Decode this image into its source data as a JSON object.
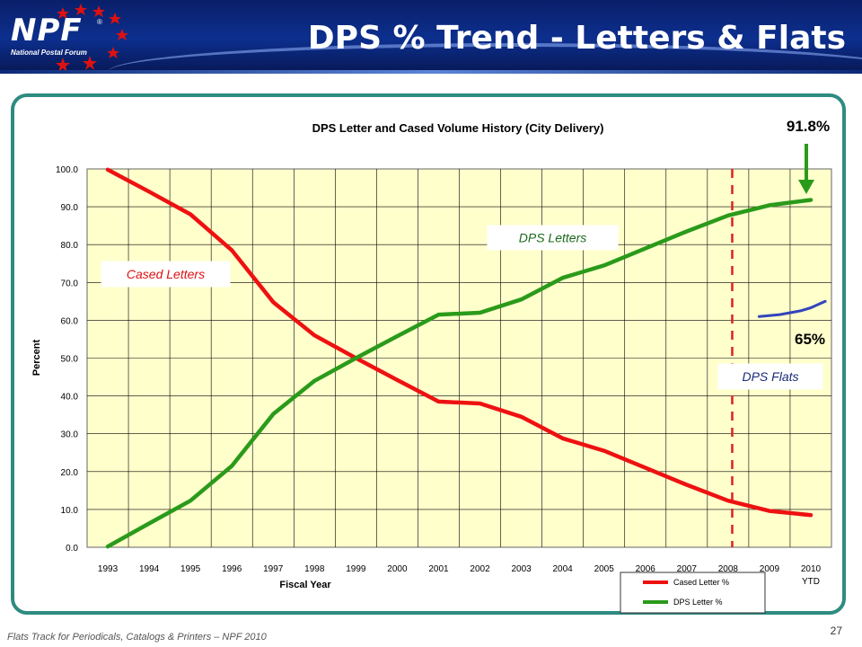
{
  "slide": {
    "title": "DPS % Trend - Letters & Flats",
    "logo": "NPF",
    "logo_subtitle": "National Postal Forum",
    "registered": "®",
    "footer": "Flats Track for Periodicals, Catalogs & Printers – NPF 2010",
    "page_number": "27",
    "colors": {
      "banner": "#0c2f8e",
      "frame": "#2e8b80",
      "plot_bg": "#ffffcc"
    }
  },
  "chart_data": {
    "type": "line",
    "title": "DPS Letter and Cased Volume History (City Delivery)",
    "xlabel": "Fiscal Year",
    "ylabel": "Percent",
    "categories": [
      "1993",
      "1994",
      "1995",
      "1996",
      "1997",
      "1998",
      "1999",
      "2000",
      "2001",
      "2002",
      "2003",
      "2004",
      "2005",
      "2006",
      "2007",
      "2008",
      "2009",
      "2010"
    ],
    "extra_tick_label": "YTD",
    "ylim": [
      0,
      100
    ],
    "yticks": [
      "0.0",
      "10.0",
      "20.0",
      "30.0",
      "40.0",
      "50.0",
      "60.0",
      "70.0",
      "80.0",
      "90.0",
      "100.0"
    ],
    "grid": true,
    "series": [
      {
        "name": "Cased Letter %",
        "color": "#ee1111",
        "values": [
          99.8,
          94,
          88,
          78.5,
          64.8,
          56,
          50,
          44.2,
          38.5,
          38,
          34.5,
          28.8,
          25.5,
          21,
          16.5,
          12.3,
          9.6,
          8.5
        ]
      },
      {
        "name": "DPS Letter %",
        "color": "#2a9a1a",
        "values": [
          0.2,
          6.3,
          12.3,
          21.5,
          35.2,
          44,
          50,
          55.8,
          61.5,
          62,
          65.5,
          71.2,
          74.5,
          79,
          83.5,
          87.7,
          90.4,
          91.8
        ]
      },
      {
        "color": "#3344bb",
        "x": [
          15.75,
          16.25,
          16.75,
          17.0,
          17.35
        ],
        "values": [
          61,
          61.5,
          62.5,
          63.3,
          65
        ]
      }
    ],
    "legend_position": "bottom-right",
    "annotations": {
      "cased_letters": "Cased Letters",
      "dps_letters": "DPS Letters",
      "dps_flats": "DPS Flats",
      "peak_value": "91.8%",
      "flats_value": "65%"
    },
    "divider_x": 15.6
  }
}
